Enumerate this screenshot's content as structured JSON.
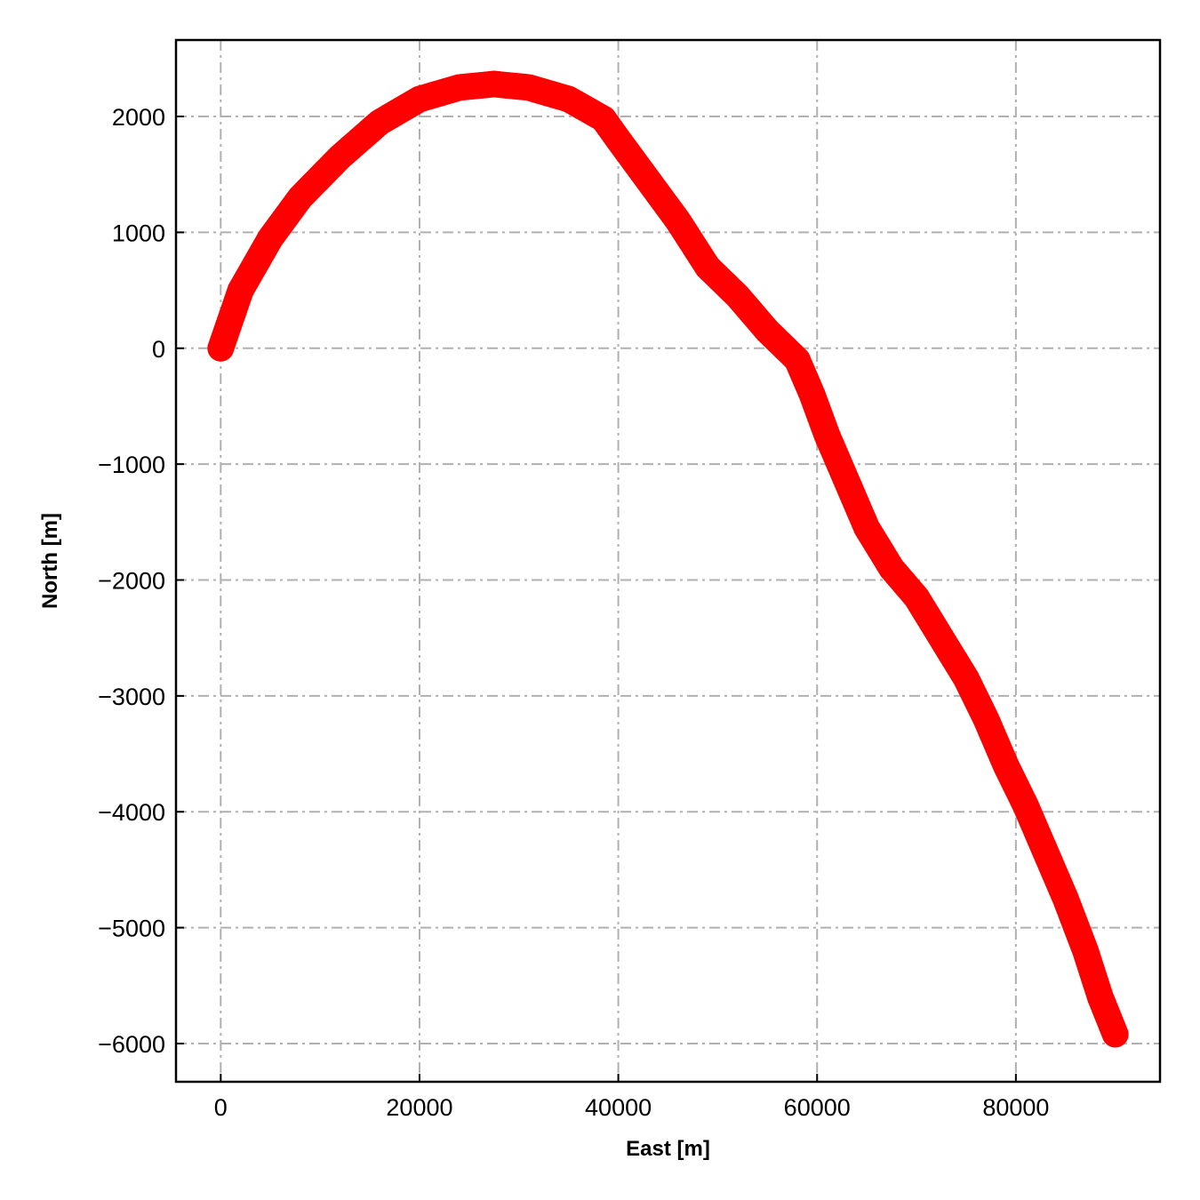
{
  "chart_data": {
    "type": "scatter",
    "title": "",
    "xlabel": "East [m]",
    "ylabel": "North [m]",
    "xlim": [
      -4500,
      94500
    ],
    "ylim": [
      -6330,
      2660
    ],
    "xticks": [
      0,
      20000,
      40000,
      60000,
      80000
    ],
    "yticks": [
      2000,
      1000,
      0,
      -1000,
      -2000,
      -3000,
      -4000,
      -5000,
      -6000
    ],
    "x_tick_labels": [
      "0",
      "20000",
      "40000",
      "60000",
      "80000"
    ],
    "y_tick_labels": [
      "2000",
      "1000",
      "0",
      "−1000",
      "−2000",
      "−3000",
      "−4000",
      "−5000",
      "−6000"
    ],
    "grid": true,
    "grid_style": "dash-dot",
    "colors": {
      "marker": "#ff0000",
      "grid": "#b0b0b0",
      "frame": "#000000"
    },
    "series": [
      {
        "marker": "circle",
        "x": [
          0,
          2000,
          5000,
          8000,
          12000,
          16000,
          20000,
          24000,
          27500,
          31000,
          35000,
          38500,
          40000,
          43000,
          46000,
          49000,
          52000,
          55000,
          58000,
          59500,
          61000,
          63000,
          65000,
          67500,
          70000,
          72500,
          75000,
          77000,
          79000,
          81000,
          83000,
          85000,
          87000,
          88500,
          90000
        ],
        "y": [
          0,
          500,
          950,
          1300,
          1650,
          1950,
          2150,
          2250,
          2280,
          2250,
          2150,
          1980,
          1800,
          1450,
          1100,
          700,
          450,
          150,
          -100,
          -400,
          -750,
          -1150,
          -1550,
          -1900,
          -2150,
          -2500,
          -2850,
          -3200,
          -3600,
          -3950,
          -4350,
          -4750,
          -5200,
          -5600,
          -5920
        ]
      }
    ]
  }
}
